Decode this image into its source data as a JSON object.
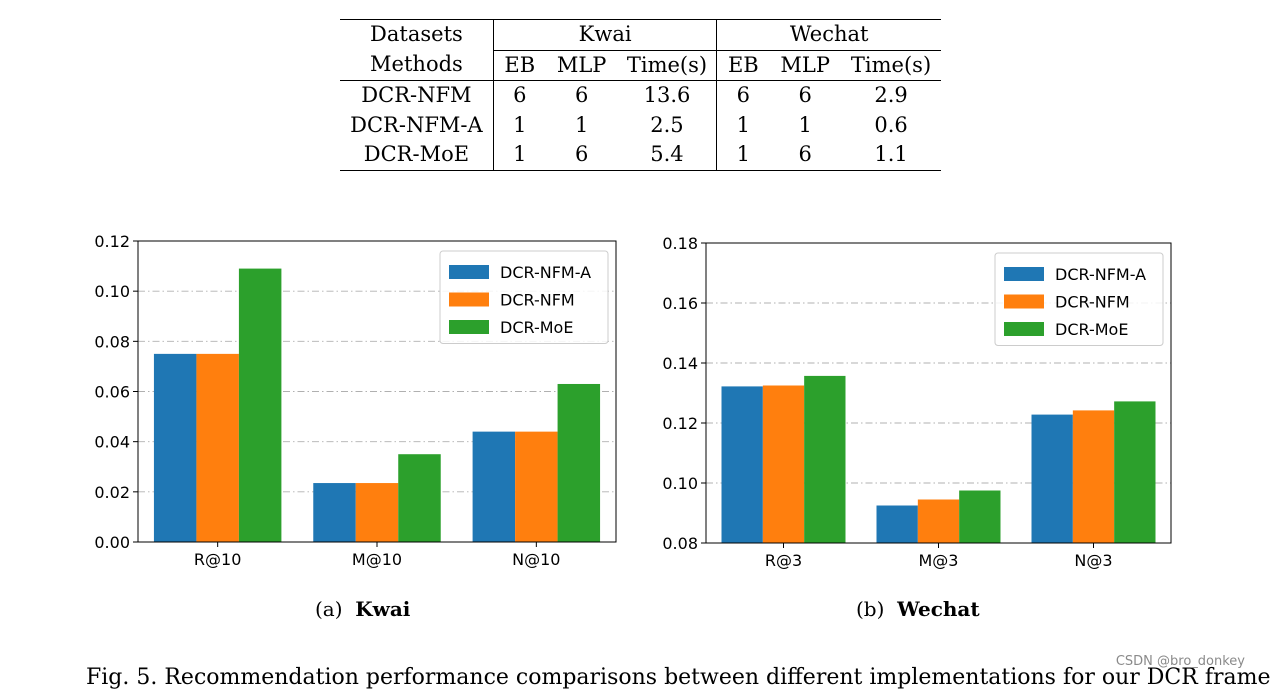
{
  "table": {
    "col_datasets": "Datasets",
    "col_methods": "Methods",
    "groups": [
      "Kwai",
      "Wechat"
    ],
    "subcols": [
      "EB",
      "MLP",
      "Time(s)"
    ],
    "rows": [
      {
        "method": "DCR-NFM",
        "cells": [
          "6",
          "6",
          "13.6",
          "6",
          "6",
          "2.9"
        ]
      },
      {
        "method": "DCR-NFM-A",
        "cells": [
          "1",
          "1",
          "2.5",
          "1",
          "1",
          "0.6"
        ]
      },
      {
        "method": "DCR-MoE",
        "cells": [
          "1",
          "6",
          "5.4",
          "1",
          "6",
          "1.1"
        ]
      }
    ]
  },
  "colors": {
    "DCR-NFM-A": "#1f77b4",
    "DCR-NFM": "#ff7f0e",
    "DCR-MoE": "#2ca02c",
    "grid": "#b0b0b0"
  },
  "chart_data": [
    {
      "type": "bar",
      "title": "",
      "categories": [
        "R@10",
        "M@10",
        "N@10"
      ],
      "series": [
        {
          "name": "DCR-NFM-A",
          "values": [
            0.075,
            0.0235,
            0.044
          ]
        },
        {
          "name": "DCR-NFM",
          "values": [
            0.075,
            0.0235,
            0.044
          ]
        },
        {
          "name": "DCR-MoE",
          "values": [
            0.109,
            0.035,
            0.063
          ]
        }
      ],
      "ylim": [
        0,
        0.12
      ],
      "yticks": [
        "0.00",
        "0.02",
        "0.04",
        "0.06",
        "0.08",
        "0.10",
        "0.12"
      ],
      "ytick_values": [
        0,
        0.02,
        0.04,
        0.06,
        0.08,
        0.1,
        0.12
      ],
      "grid": true,
      "legend_position": "top-right",
      "xlabel": "",
      "ylabel": ""
    },
    {
      "type": "bar",
      "title": "",
      "categories": [
        "R@3",
        "M@3",
        "N@3"
      ],
      "series": [
        {
          "name": "DCR-NFM-A",
          "values": [
            0.1322,
            0.0925,
            0.1228
          ]
        },
        {
          "name": "DCR-NFM",
          "values": [
            0.1325,
            0.0945,
            0.1242
          ]
        },
        {
          "name": "DCR-MoE",
          "values": [
            0.1357,
            0.0975,
            0.1272
          ]
        }
      ],
      "ylim": [
        0.08,
        0.18
      ],
      "yticks": [
        "0.08",
        "0.10",
        "0.12",
        "0.14",
        "0.16",
        "0.18"
      ],
      "ytick_values": [
        0.08,
        0.1,
        0.12,
        0.14,
        0.16,
        0.18
      ],
      "grid": true,
      "legend_position": "top-right",
      "xlabel": "",
      "ylabel": ""
    }
  ],
  "captions": {
    "a_prefix": "(a)",
    "a_title": "Kwai",
    "b_prefix": "(b)",
    "b_title": "Wechat"
  },
  "figure_caption": "Fig. 5. Recommendation performance comparisons between different implementations for our DCR frame",
  "watermark": "CSDN @bro_donkey"
}
